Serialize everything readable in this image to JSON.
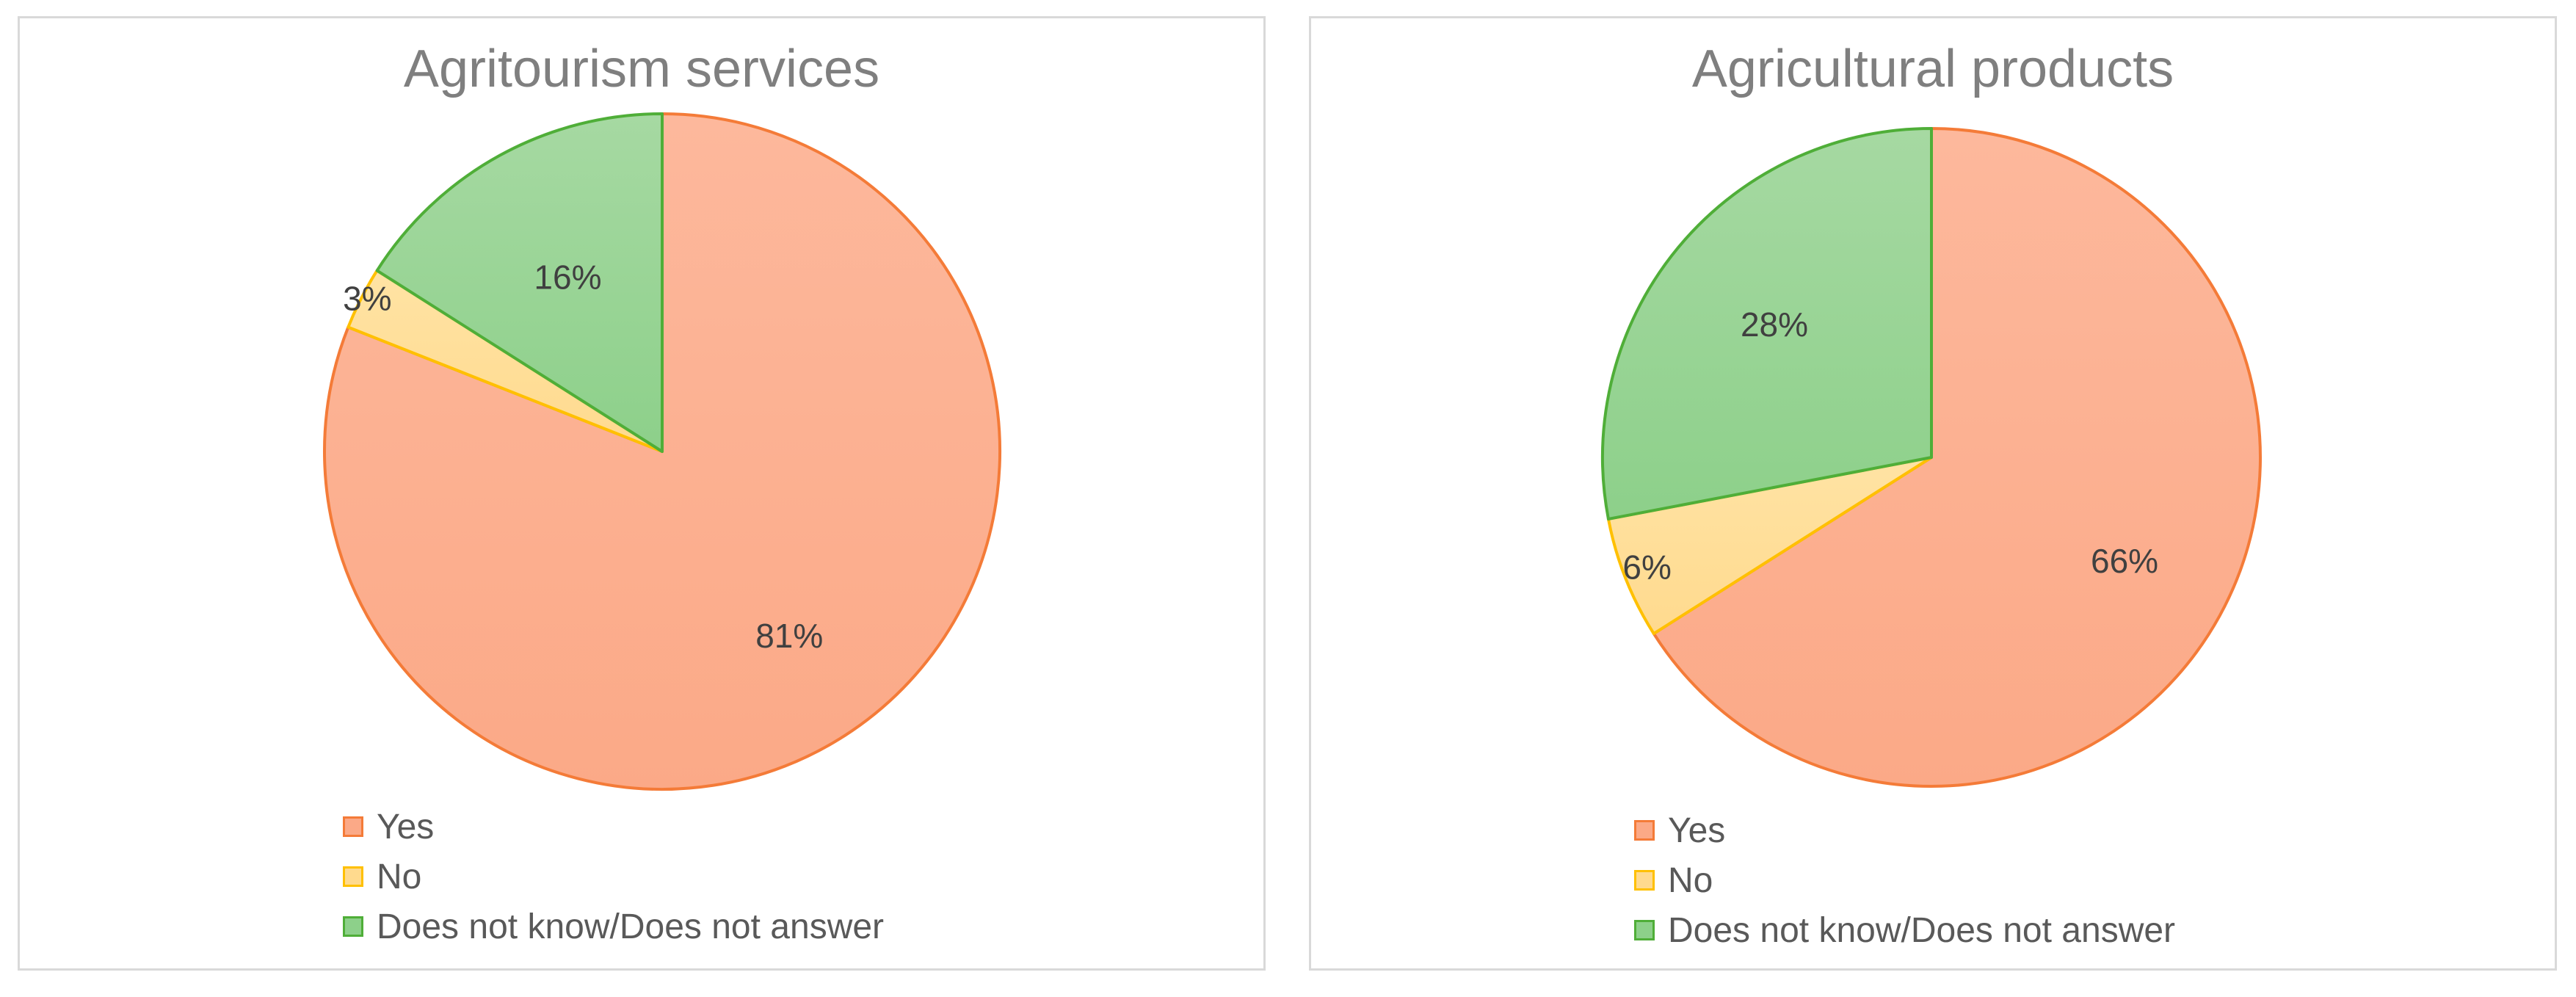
{
  "colors": {
    "yes_fill": "#FBA987",
    "yes_stroke": "#F47B38",
    "no_fill": "#FFDA8E",
    "no_stroke": "#FFC000",
    "dk_fill": "#8DD08A",
    "dk_stroke": "#4FAE38"
  },
  "chart_data": [
    {
      "type": "pie",
      "title": "Agritourism services",
      "categories": [
        "Yes",
        "No",
        "Does not know/Does not answer"
      ],
      "values": [
        81,
        3,
        16
      ],
      "data_labels": [
        "81%",
        "3%",
        "16%"
      ],
      "legend_position": "bottom"
    },
    {
      "type": "pie",
      "title": "Agricultural products",
      "categories": [
        "Yes",
        "No",
        "Does not know/Does not answer"
      ],
      "values": [
        66,
        6,
        28
      ],
      "data_labels": [
        "66%",
        "6%",
        "28%"
      ],
      "legend_position": "bottom"
    }
  ]
}
